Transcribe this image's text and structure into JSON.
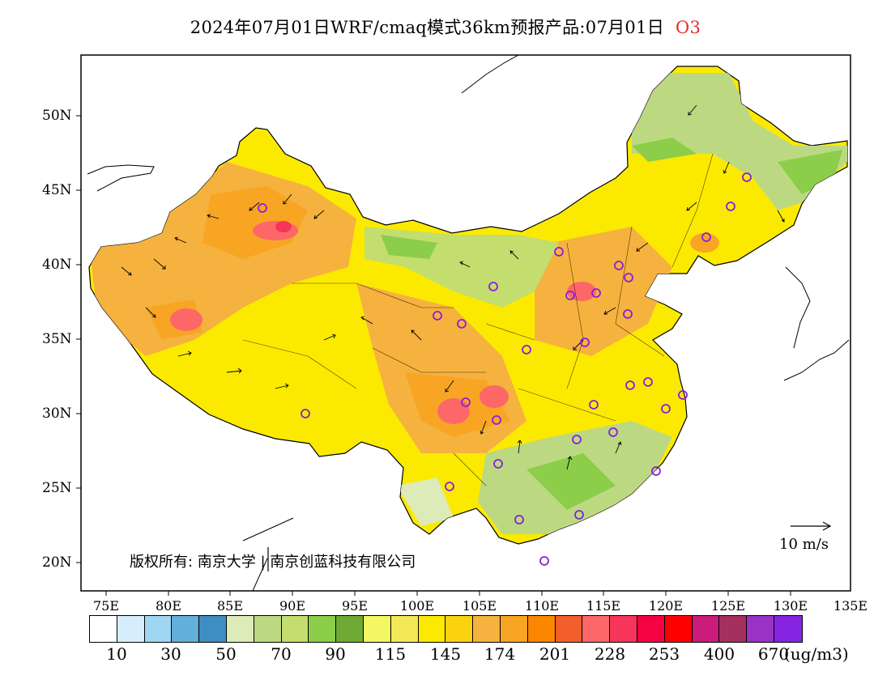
{
  "title": {
    "main": "2024年07月01日WRF/cmaq模式36km预报产品:07月01日",
    "pollutant": "O3"
  },
  "map": {
    "lat_labels": [
      "50N",
      "45N",
      "40N",
      "35N",
      "30N",
      "25N",
      "20N"
    ],
    "lon_labels": [
      "75E",
      "80E",
      "85E",
      "90E",
      "95E",
      "100E",
      "105E",
      "110E",
      "115E",
      "120E",
      "125E",
      "130E",
      "135E"
    ],
    "copyright": "版权所有: 南京大学 | 南京创蓝科技有限公司",
    "wind_reference": "10 m/s"
  },
  "legend": {
    "colors": [
      "#ffffff",
      "#d6eefb",
      "#9fd7f3",
      "#64b0dc",
      "#3e8ec4",
      "#dcebb7",
      "#bcd982",
      "#c3dd6e",
      "#8ccd4a",
      "#6eaa34",
      "#f3f762",
      "#f3e957",
      "#fbea00",
      "#fbd20f",
      "#f6b23e",
      "#f8a524",
      "#fb8700",
      "#f35f2c",
      "#fd6768",
      "#f7345a",
      "#f40343",
      "#fe0000",
      "#cb1b7b",
      "#a4305d",
      "#9a32c6",
      "#8724e2"
    ],
    "labels": [
      "10",
      "30",
      "50",
      "70",
      "90",
      "115",
      "145",
      "174",
      "201",
      "228",
      "253",
      "400",
      "670"
    ],
    "unit": "(ug/m3)"
  }
}
